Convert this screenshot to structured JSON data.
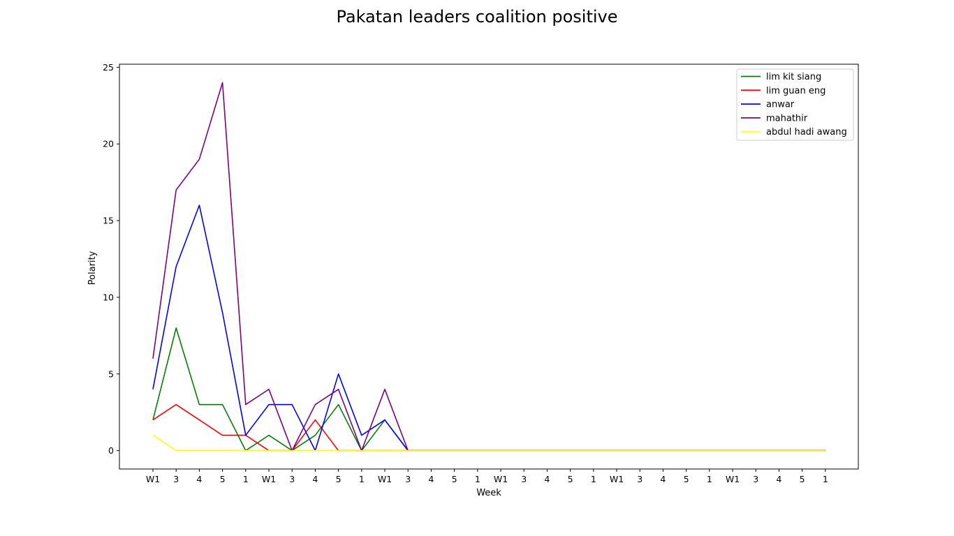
{
  "chart_data": {
    "type": "line",
    "title": "Pakatan leaders coalition positive",
    "xlabel": "Week",
    "ylabel": "Polarity",
    "categories": [
      "W1",
      "3",
      "4",
      "5",
      "1",
      "W1",
      "3",
      "4",
      "5",
      "1",
      "W1",
      "3",
      "4",
      "5",
      "1",
      "W1",
      "3",
      "4",
      "5",
      "1",
      "W1",
      "3",
      "4",
      "5",
      "1",
      "W1",
      "3",
      "4",
      "5",
      "1"
    ],
    "ylim": [
      -1.2,
      25.2
    ],
    "yticks": [
      0,
      5,
      10,
      15,
      20,
      25
    ],
    "grid": false,
    "legend_position": "top-right",
    "series": [
      {
        "name": "lim kit siang",
        "color": "#008000",
        "values": [
          2,
          8,
          3,
          3,
          0,
          1,
          0,
          1,
          3,
          0,
          2,
          0,
          0,
          0,
          0,
          0,
          0,
          0,
          0,
          0,
          0,
          0,
          0,
          0,
          0,
          0,
          0,
          0,
          0,
          0
        ]
      },
      {
        "name": "lim guan eng",
        "color": "#ff0000",
        "values": [
          2,
          3,
          2,
          1,
          1,
          0,
          0,
          2,
          0,
          0,
          0,
          0,
          0,
          0,
          0,
          0,
          0,
          0,
          0,
          0,
          0,
          0,
          0,
          0,
          0,
          0,
          0,
          0,
          0,
          0
        ]
      },
      {
        "name": "anwar",
        "color": "#0000ff",
        "values": [
          4,
          12,
          16,
          9,
          1,
          3,
          3,
          0,
          5,
          1,
          2,
          0,
          0,
          0,
          0,
          0,
          0,
          0,
          0,
          0,
          0,
          0,
          0,
          0,
          0,
          0,
          0,
          0,
          0,
          0
        ]
      },
      {
        "name": "mahathir",
        "color": "#800080",
        "values": [
          6,
          17,
          19,
          24,
          3,
          4,
          0,
          3,
          4,
          0,
          4,
          0,
          0,
          0,
          0,
          0,
          0,
          0,
          0,
          0,
          0,
          0,
          0,
          0,
          0,
          0,
          0,
          0,
          0,
          0
        ]
      },
      {
        "name": "abdul hadi awang",
        "color": "#ffff00",
        "values": [
          1,
          0,
          0,
          0,
          0,
          0,
          0,
          0,
          0,
          0,
          0,
          0,
          0,
          0,
          0,
          0,
          0,
          0,
          0,
          0,
          0,
          0,
          0,
          0,
          0,
          0,
          0,
          0,
          0,
          0
        ]
      }
    ]
  }
}
